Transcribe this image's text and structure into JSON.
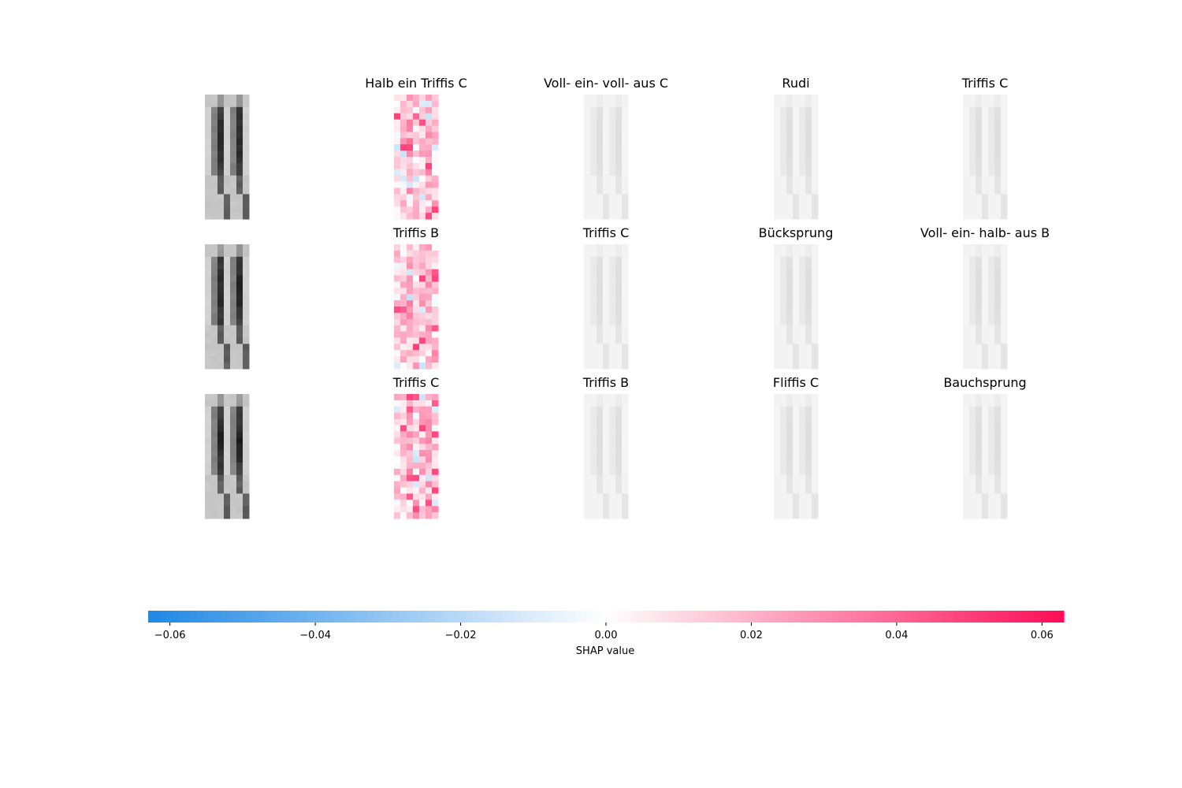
{
  "chart_data": {
    "type": "heatmap",
    "description_of_rows": [
      {
        "row": 1,
        "input_image": "grayscale pattern",
        "panels": [
          {
            "title": "Halb ein Triffis C",
            "intensity": "strong"
          },
          {
            "title": "Voll- ein- voll- aus C",
            "intensity": "faint"
          },
          {
            "title": "Rudi",
            "intensity": "faint"
          },
          {
            "title": "Triffis C",
            "intensity": "faint"
          }
        ]
      },
      {
        "row": 2,
        "input_image": "grayscale pattern",
        "panels": [
          {
            "title": "Triffis B",
            "intensity": "strong"
          },
          {
            "title": "Triffis C",
            "intensity": "faint"
          },
          {
            "title": "Bücksprung",
            "intensity": "faint"
          },
          {
            "title": "Voll- ein- halb- aus B",
            "intensity": "faint"
          }
        ]
      },
      {
        "row": 3,
        "input_image": "grayscale pattern",
        "panels": [
          {
            "title": "Triffis C",
            "intensity": "strong"
          },
          {
            "title": "Triffis B",
            "intensity": "faint"
          },
          {
            "title": "Fliffis C",
            "intensity": "faint"
          },
          {
            "title": "Bauchsprung",
            "intensity": "faint"
          }
        ]
      }
    ],
    "colorbar": {
      "label": "SHAP value",
      "range": [
        -0.063,
        0.063
      ],
      "ticks": [
        -0.06,
        -0.04,
        -0.02,
        0.0,
        0.02,
        0.04,
        0.06
      ],
      "tick_labels": [
        "−0.06",
        "−0.04",
        "−0.02",
        "0.00",
        "0.02",
        "0.04",
        "0.06"
      ],
      "negative_color": "#1e88e5",
      "positive_color": "#ff0d57"
    },
    "grid": false,
    "legend": "none"
  }
}
